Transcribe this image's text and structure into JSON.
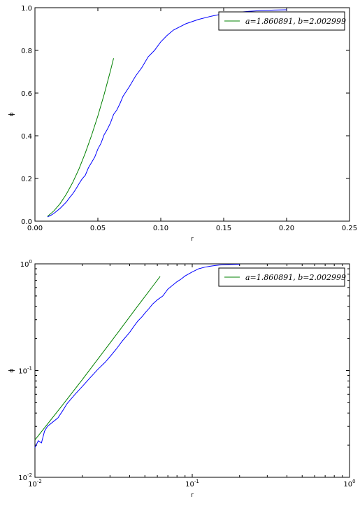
{
  "chart_data": [
    {
      "type": "line",
      "xscale": "linear",
      "yscale": "linear",
      "xlim": [
        0,
        0.25
      ],
      "ylim": [
        0,
        1
      ],
      "xlabel": "r",
      "ylabel": "ϕ",
      "xticks": [
        0,
        0.05,
        0.1,
        0.15,
        0.2,
        0.25
      ],
      "xtick_labels": [
        "0.00",
        "0.05",
        "0.10",
        "0.15",
        "0.20",
        "0.25"
      ],
      "yticks": [
        0,
        0.2,
        0.4,
        0.6,
        0.8,
        1.0
      ],
      "ytick_labels": [
        "0.0",
        "0.2",
        "0.4",
        "0.6",
        "0.8",
        "1.0"
      ],
      "legend": "top-right",
      "grid": false,
      "series": [
        {
          "color": "#0000ff",
          "x": [
            0.01,
            0.0125,
            0.015,
            0.0175,
            0.02,
            0.0225,
            0.025,
            0.0275,
            0.03,
            0.0325,
            0.035,
            0.0375,
            0.04,
            0.0425,
            0.045,
            0.0475,
            0.05,
            0.0525,
            0.055,
            0.0575,
            0.06,
            0.0625,
            0.065,
            0.0675,
            0.07,
            0.075,
            0.08,
            0.085,
            0.09,
            0.095,
            0.1,
            0.105,
            0.11,
            0.115,
            0.12,
            0.13,
            0.14,
            0.15,
            0.16,
            0.17,
            0.18,
            0.19,
            0.2
          ],
          "y": [
            0.02,
            0.027,
            0.036,
            0.048,
            0.06,
            0.075,
            0.09,
            0.11,
            0.128,
            0.15,
            0.175,
            0.198,
            0.215,
            0.25,
            0.275,
            0.3,
            0.338,
            0.365,
            0.405,
            0.43,
            0.46,
            0.5,
            0.52,
            0.55,
            0.585,
            0.63,
            0.68,
            0.72,
            0.77,
            0.8,
            0.84,
            0.87,
            0.895,
            0.91,
            0.925,
            0.945,
            0.96,
            0.972,
            0.978,
            0.983,
            0.987,
            0.989,
            0.99
          ]
        },
        {
          "name": "a=1.860891, b=2.002999",
          "color": "#008000",
          "x": [
            0.01,
            0.015,
            0.02,
            0.025,
            0.03,
            0.035,
            0.04,
            0.045,
            0.05,
            0.055,
            0.06,
            0.0625
          ],
          "y": [
            0.0224,
            0.0477,
            0.0823,
            0.127,
            0.181,
            0.245,
            0.319,
            0.402,
            0.493,
            0.594,
            0.704,
            0.763
          ]
        }
      ]
    },
    {
      "type": "line",
      "xscale": "log",
      "yscale": "log",
      "xlim": [
        0.01,
        1
      ],
      "ylim": [
        0.01,
        1
      ],
      "xlabel": "r",
      "ylabel": "ϕ",
      "xticks": [
        0.01,
        0.1,
        1
      ],
      "xtick_labels": [
        {
          "base": "10",
          "exp": "-2"
        },
        {
          "base": "10",
          "exp": "-1"
        },
        {
          "base": "10",
          "exp": "0"
        }
      ],
      "yticks": [
        0.01,
        0.1,
        1
      ],
      "ytick_labels": [
        {
          "base": "10",
          "exp": "-2"
        },
        {
          "base": "10",
          "exp": "-1"
        },
        {
          "base": "10",
          "exp": "0"
        }
      ],
      "legend": "top-right",
      "grid": false,
      "series": [
        {
          "color": "#0000ff",
          "x": [
            0.01,
            0.0105,
            0.011,
            0.0115,
            0.012,
            0.013,
            0.014,
            0.015,
            0.016,
            0.018,
            0.02,
            0.022,
            0.025,
            0.028,
            0.03,
            0.033,
            0.036,
            0.04,
            0.043,
            0.045,
            0.048,
            0.05,
            0.053,
            0.056,
            0.06,
            0.065,
            0.07,
            0.075,
            0.08,
            0.085,
            0.09,
            0.1,
            0.11,
            0.12,
            0.13,
            0.14,
            0.15,
            0.17,
            0.2
          ],
          "y": [
            0.019,
            0.022,
            0.021,
            0.027,
            0.03,
            0.033,
            0.036,
            0.042,
            0.049,
            0.06,
            0.071,
            0.083,
            0.102,
            0.12,
            0.135,
            0.16,
            0.19,
            0.228,
            0.265,
            0.29,
            0.32,
            0.345,
            0.38,
            0.42,
            0.46,
            0.5,
            0.58,
            0.63,
            0.68,
            0.72,
            0.77,
            0.84,
            0.9,
            0.93,
            0.95,
            0.965,
            0.975,
            0.985,
            0.99
          ]
        },
        {
          "name": "a=1.860891, b=2.002999",
          "color": "#008000",
          "x": [
            0.01,
            0.015,
            0.02,
            0.025,
            0.03,
            0.035,
            0.04,
            0.045,
            0.05,
            0.055,
            0.06,
            0.0625
          ],
          "y": [
            0.0224,
            0.0477,
            0.0823,
            0.127,
            0.181,
            0.245,
            0.319,
            0.402,
            0.493,
            0.594,
            0.704,
            0.763
          ]
        }
      ]
    }
  ]
}
